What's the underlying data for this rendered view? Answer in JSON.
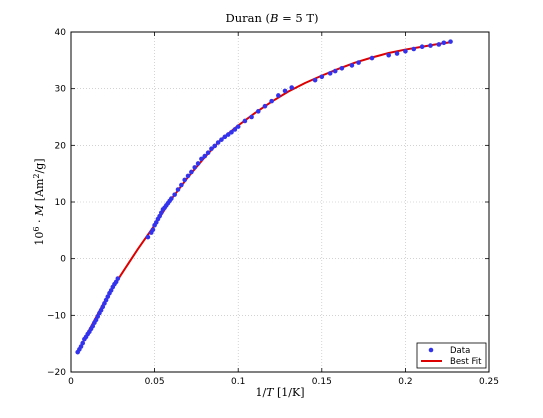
{
  "chart_data": {
    "type": "scatter",
    "title": "Duran (B = 5 T)",
    "xlabel": "1/T [1/K]",
    "ylabel": "10^6 · M [Am^2/g]",
    "xlim": [
      0,
      0.25
    ],
    "ylim": [
      -20,
      40
    ],
    "xticks": [
      0,
      0.05,
      0.1,
      0.15,
      0.2,
      0.25
    ],
    "xtick_labels": [
      "0",
      "0.05",
      "0.1",
      "0.15",
      "0.2",
      "0.25"
    ],
    "yticks": [
      -20,
      -10,
      0,
      10,
      20,
      30,
      40
    ],
    "ytick_labels": [
      "−20",
      "−10",
      "0",
      "10",
      "20",
      "30",
      "40"
    ],
    "grid": true,
    "legend_position": "bottom-right",
    "series": [
      {
        "name": "Data",
        "kind": "scatter",
        "color": "#3333ee",
        "x": [
          0.004,
          0.005,
          0.006,
          0.007,
          0.008,
          0.009,
          0.01,
          0.011,
          0.012,
          0.013,
          0.014,
          0.015,
          0.016,
          0.017,
          0.018,
          0.019,
          0.02,
          0.021,
          0.022,
          0.023,
          0.024,
          0.025,
          0.026,
          0.027,
          0.028,
          0.046,
          0.048,
          0.049,
          0.05,
          0.051,
          0.052,
          0.053,
          0.054,
          0.055,
          0.056,
          0.057,
          0.058,
          0.059,
          0.06,
          0.062,
          0.064,
          0.066,
          0.068,
          0.07,
          0.072,
          0.074,
          0.076,
          0.078,
          0.08,
          0.082,
          0.084,
          0.086,
          0.088,
          0.09,
          0.092,
          0.094,
          0.096,
          0.098,
          0.1,
          0.104,
          0.108,
          0.112,
          0.116,
          0.12,
          0.124,
          0.128,
          0.132,
          0.146,
          0.15,
          0.155,
          0.158,
          0.162,
          0.168,
          0.172,
          0.18,
          0.19,
          0.195,
          0.2,
          0.205,
          0.21,
          0.215,
          0.22,
          0.223,
          0.227
        ],
        "y": [
          -16.5,
          -16.0,
          -15.5,
          -14.9,
          -14.2,
          -13.8,
          -13.3,
          -12.9,
          -12.4,
          -11.9,
          -11.3,
          -10.8,
          -10.2,
          -9.6,
          -9.1,
          -8.5,
          -7.9,
          -7.3,
          -6.7,
          -6.1,
          -5.6,
          -5.0,
          -4.5,
          -4.1,
          -3.5,
          3.8,
          4.6,
          5.1,
          5.9,
          6.4,
          7.0,
          7.5,
          8.1,
          8.7,
          9.0,
          9.4,
          9.8,
          10.2,
          10.6,
          11.3,
          12.2,
          13.0,
          13.9,
          14.6,
          15.3,
          16.1,
          16.8,
          17.6,
          18.1,
          18.7,
          19.4,
          19.9,
          20.5,
          21.0,
          21.5,
          21.9,
          22.3,
          22.8,
          23.3,
          24.3,
          25.0,
          26.0,
          26.9,
          27.8,
          28.8,
          29.6,
          30.2,
          31.5,
          32.1,
          32.7,
          33.1,
          33.6,
          34.1,
          34.6,
          35.4,
          35.9,
          36.2,
          36.6,
          37.0,
          37.4,
          37.6,
          37.8,
          38.1,
          38.3
        ]
      },
      {
        "name": "Best Fit",
        "kind": "line",
        "color": "#dd0000",
        "x": [
          0.004,
          0.01,
          0.02,
          0.03,
          0.04,
          0.05,
          0.06,
          0.07,
          0.08,
          0.09,
          0.1,
          0.11,
          0.12,
          0.13,
          0.14,
          0.15,
          0.16,
          0.17,
          0.18,
          0.19,
          0.2,
          0.21,
          0.22,
          0.227
        ],
        "y": [
          -16.6,
          -13.1,
          -7.6,
          -2.8,
          1.7,
          5.9,
          10.5,
          14.4,
          17.9,
          21.1,
          23.5,
          25.7,
          27.7,
          29.5,
          31.0,
          32.3,
          33.5,
          34.6,
          35.5,
          36.3,
          36.9,
          37.4,
          37.9,
          38.2
        ]
      }
    ]
  }
}
